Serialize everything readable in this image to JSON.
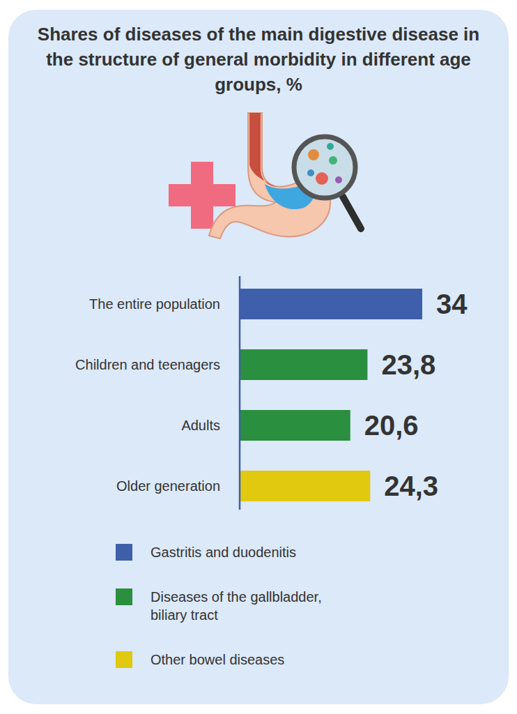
{
  "chart_data": {
    "type": "bar",
    "title": "Shares of diseases of the main digestive disease in the structure of general morbidity in different age groups, %",
    "orientation": "horizontal",
    "stacked": true,
    "data_labels": true,
    "tick_labels": "y",
    "legend": "bottom",
    "categories": [
      "The entire population",
      "Children and teenagers",
      "Adults",
      "Older generation"
    ],
    "xlim": [
      0,
      34
    ],
    "series": [
      {
        "name": "Gastritis and duodenitis",
        "color": "#3f5fab",
        "values": [
          34,
          null,
          null,
          null
        ],
        "value_labels": [
          "34",
          null,
          null,
          null
        ]
      },
      {
        "name": "Diseases of the gallbladder, biliary tract",
        "color": "#2a8f3e",
        "values": [
          null,
          23.8,
          20.6,
          null
        ],
        "value_labels": [
          null,
          "23,8",
          "20,6",
          null
        ]
      },
      {
        "name": "Other bowel diseases",
        "color": "#e0c90f",
        "values": [
          null,
          null,
          null,
          24.3
        ],
        "value_labels": [
          null,
          null,
          null,
          "24,3"
        ]
      }
    ]
  }
}
